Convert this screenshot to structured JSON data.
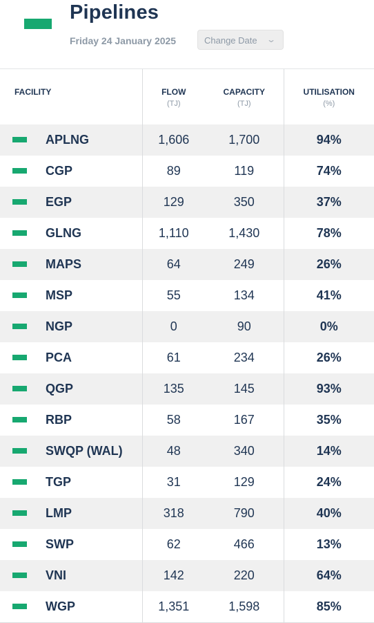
{
  "header": {
    "title": "Pipelines",
    "date": "Friday 24 January 2025",
    "change_date_label": "Change Date",
    "accent_color": "#17a870"
  },
  "columns": [
    {
      "label": "FACILITY",
      "unit": ""
    },
    {
      "label": "FLOW",
      "unit": "(TJ)"
    },
    {
      "label": "CAPACITY",
      "unit": "(TJ)"
    },
    {
      "label": "UTILISATION",
      "unit": "(%)"
    }
  ],
  "rows": [
    {
      "facility": "APLNG",
      "flow": "1,606",
      "capacity": "1,700",
      "utilisation": "94%"
    },
    {
      "facility": "CGP",
      "flow": "89",
      "capacity": "119",
      "utilisation": "74%"
    },
    {
      "facility": "EGP",
      "flow": "129",
      "capacity": "350",
      "utilisation": "37%"
    },
    {
      "facility": "GLNG",
      "flow": "1,110",
      "capacity": "1,430",
      "utilisation": "78%"
    },
    {
      "facility": "MAPS",
      "flow": "64",
      "capacity": "249",
      "utilisation": "26%"
    },
    {
      "facility": "MSP",
      "flow": "55",
      "capacity": "134",
      "utilisation": "41%"
    },
    {
      "facility": "NGP",
      "flow": "0",
      "capacity": "90",
      "utilisation": "0%"
    },
    {
      "facility": "PCA",
      "flow": "61",
      "capacity": "234",
      "utilisation": "26%"
    },
    {
      "facility": "QGP",
      "flow": "135",
      "capacity": "145",
      "utilisation": "93%"
    },
    {
      "facility": "RBP",
      "flow": "58",
      "capacity": "167",
      "utilisation": "35%"
    },
    {
      "facility": "SWQP (WAL)",
      "flow": "48",
      "capacity": "340",
      "utilisation": "14%"
    },
    {
      "facility": "TGP",
      "flow": "31",
      "capacity": "129",
      "utilisation": "24%"
    },
    {
      "facility": "LMP",
      "flow": "318",
      "capacity": "790",
      "utilisation": "40%"
    },
    {
      "facility": "SWP",
      "flow": "62",
      "capacity": "466",
      "utilisation": "13%"
    },
    {
      "facility": "VNI",
      "flow": "142",
      "capacity": "220",
      "utilisation": "64%"
    },
    {
      "facility": "WGP",
      "flow": "1,351",
      "capacity": "1,598",
      "utilisation": "85%"
    }
  ]
}
